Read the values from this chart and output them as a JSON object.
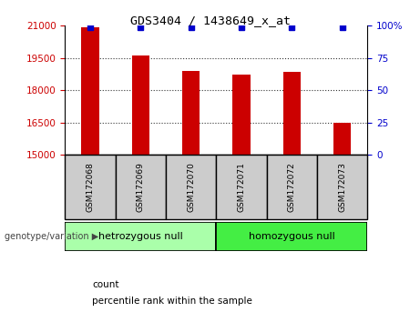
{
  "title": "GDS3404 / 1438649_x_at",
  "samples": [
    "GSM172068",
    "GSM172069",
    "GSM172070",
    "GSM172071",
    "GSM172072",
    "GSM172073"
  ],
  "counts": [
    20950,
    19620,
    18900,
    18720,
    18840,
    16500
  ],
  "percentile_ranks": [
    99,
    99,
    99,
    99,
    99,
    99
  ],
  "groups": [
    {
      "label": "hetrozygous null",
      "indices": [
        0,
        1,
        2
      ],
      "color": "#AAFFAA"
    },
    {
      "label": "homozygous null",
      "indices": [
        3,
        4,
        5
      ],
      "color": "#44EE44"
    }
  ],
  "bar_color": "#CC0000",
  "pct_marker_color": "#0000CC",
  "ylim_left": [
    15000,
    21000
  ],
  "yticks_left": [
    15000,
    16500,
    18000,
    19500,
    21000
  ],
  "ylim_right": [
    0,
    100
  ],
  "yticks_right": [
    0,
    25,
    50,
    75,
    100
  ],
  "ytick_labels_right": [
    "0",
    "25",
    "50",
    "75",
    "100%"
  ],
  "bar_width": 0.35,
  "bg_color": "#ffffff",
  "plot_bg": "#ffffff",
  "grid_color": "#333333",
  "tick_label_color_left": "#CC0000",
  "tick_label_color_right": "#0000CC",
  "legend_count_label": "count",
  "legend_pct_label": "percentile rank within the sample",
  "group_label_prefix": "genotype/variation",
  "sample_label_bg": "#CCCCCC"
}
